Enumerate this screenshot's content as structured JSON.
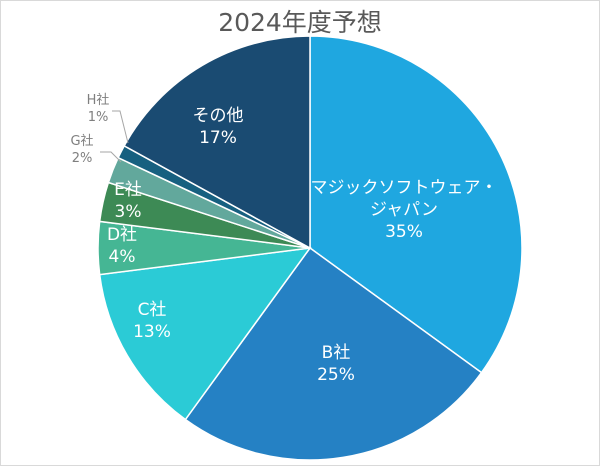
{
  "chart_data": {
    "type": "pie",
    "title": "2024年度予想",
    "categories": [
      "マジックソフトウェア・ジャパン",
      "B社",
      "C社",
      "D社",
      "E社",
      "G社",
      "H社",
      "その他"
    ],
    "values": [
      35,
      25,
      13,
      4,
      3,
      2,
      1,
      17
    ],
    "unit": "%",
    "colors": [
      "#1fa7e0",
      "#2581c4",
      "#2bcbd6",
      "#45b694",
      "#3d8a55",
      "#62a89c",
      "#176080",
      "#1a4b72"
    ],
    "start_angle": "12 o'clock",
    "direction": "clockwise",
    "labels": [
      {
        "name_lines": [
          "マジックソフトウェア・",
          "ジャパン"
        ],
        "pct": "35%",
        "inside": true
      },
      {
        "name_lines": [
          "B社"
        ],
        "pct": "25%",
        "inside": true
      },
      {
        "name_lines": [
          "C社"
        ],
        "pct": "13%",
        "inside": true
      },
      {
        "name_lines": [
          "D社"
        ],
        "pct": "4%",
        "inside": true
      },
      {
        "name_lines": [
          "E社"
        ],
        "pct": "3%",
        "inside": true
      },
      {
        "name_lines": [
          "G社"
        ],
        "pct": "2%",
        "inside": false
      },
      {
        "name_lines": [
          "H社"
        ],
        "pct": "1%",
        "inside": false
      },
      {
        "name_lines": [
          "その他"
        ],
        "pct": "17%",
        "inside": true
      }
    ],
    "legend": "none (data labels)"
  }
}
